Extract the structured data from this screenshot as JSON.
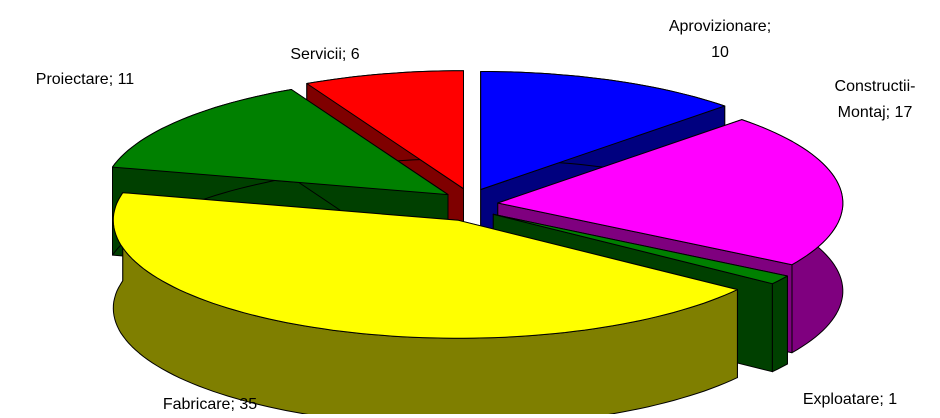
{
  "chart_data": {
    "type": "pie",
    "values": [
      10,
      17,
      1,
      35,
      11,
      6
    ],
    "value_labels": [
      "Aprovizionare; 10",
      "Constructii-Montaj; 17",
      "Exploatare; 1",
      "Fabricare; 35",
      "Proiectare; 11",
      "Servicii; 6"
    ],
    "colors": [
      "#0000ff",
      "#ff00ff",
      "#008000",
      "#ffff00",
      "#008000",
      "#ff0000"
    ],
    "three_d": true,
    "exploded": true
  }
}
